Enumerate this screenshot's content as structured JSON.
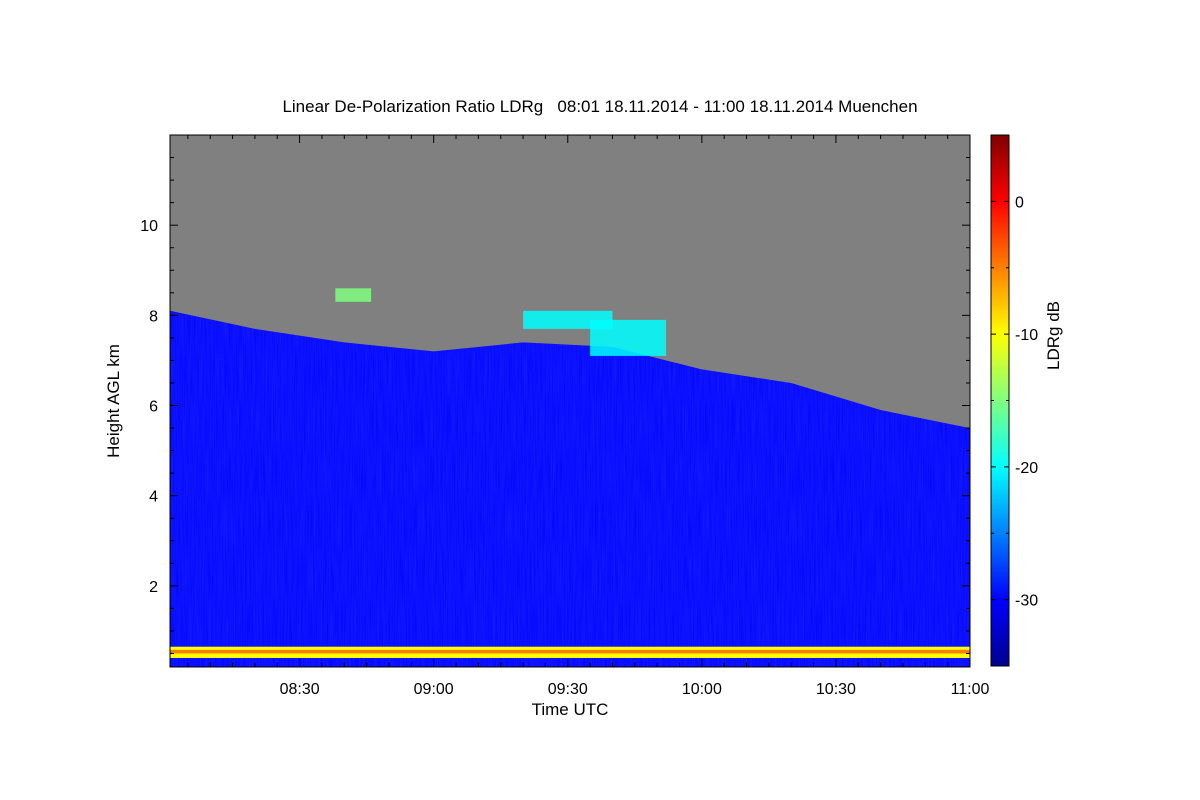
{
  "title": "Linear De-Polarization Ratio LDRg   08:01 18.11.2014 - 11:00 18.11.2014 Muenchen",
  "chart_data": {
    "type": "heatmap",
    "title": "Linear De-Polarization Ratio LDRg   08:01 18.11.2014 - 11:00 18.11.2014 Muenchen",
    "xlabel": "Time UTC",
    "ylabel": "Height AGL km",
    "colorbar_label": "LDRg dB",
    "xlim": [
      "08:01",
      "11:00"
    ],
    "ylim": [
      0.2,
      12.0
    ],
    "clim": [
      -35,
      5
    ],
    "x_ticks": [
      {
        "t": "08:30",
        "label": "08:30"
      },
      {
        "t": "09:00",
        "label": "09:00"
      },
      {
        "t": "09:30",
        "label": "09:30"
      },
      {
        "t": "10:00",
        "label": "10:00"
      },
      {
        "t": "10:30",
        "label": "10:30"
      },
      {
        "t": "11:00",
        "label": "11:00"
      }
    ],
    "y_ticks": [
      {
        "v": 2,
        "label": "2"
      },
      {
        "v": 4,
        "label": "4"
      },
      {
        "v": 6,
        "label": "6"
      },
      {
        "v": 8,
        "label": "8"
      },
      {
        "v": 10,
        "label": "10"
      }
    ],
    "colorbar_ticks": [
      {
        "v": 0,
        "label": "0"
      },
      {
        "v": -10,
        "label": "-10"
      },
      {
        "v": -20,
        "label": "-20"
      },
      {
        "v": -30,
        "label": "-30"
      }
    ],
    "no_data_color": "#808080",
    "colormap": [
      "#00008f",
      "#0000ff",
      "#0080ff",
      "#00ffff",
      "#80ff80",
      "#ffff00",
      "#ff8000",
      "#ff0000",
      "#800000"
    ],
    "signal_top_km": [
      {
        "t": "08:01",
        "h": 8.1
      },
      {
        "t": "08:20",
        "h": 7.7
      },
      {
        "t": "08:40",
        "h": 7.4
      },
      {
        "t": "09:00",
        "h": 7.2
      },
      {
        "t": "09:20",
        "h": 7.4
      },
      {
        "t": "09:40",
        "h": 7.3
      },
      {
        "t": "10:00",
        "h": 6.8
      },
      {
        "t": "10:20",
        "h": 6.5
      },
      {
        "t": "10:40",
        "h": 5.9
      },
      {
        "t": "11:00",
        "h": 5.5
      }
    ],
    "background_ldr_db": -28,
    "layers": [
      {
        "name": "",
        "t_start": "08:01",
        "t_end": "11:00",
        "h_bottom": 0.4,
        "h_top": 0.65,
        "ldr_db": -10
      },
      {
        "name": "",
        "t_start": "08:01",
        "t_end": "11:00",
        "h_bottom": 0.5,
        "h_top": 0.58,
        "ldr_db": -4
      },
      {
        "name": "",
        "t_start": "09:35",
        "t_end": "09:52",
        "h_bottom": 7.1,
        "h_top": 7.9,
        "ldr_db": -20
      },
      {
        "name": "",
        "t_start": "08:38",
        "t_end": "08:46",
        "h_bottom": 8.3,
        "h_top": 8.6,
        "ldr_db": -17
      },
      {
        "name": "",
        "t_start": "09:20",
        "t_end": "09:40",
        "h_bottom": 7.7,
        "h_top": 8.1,
        "ldr_db": -22
      }
    ]
  }
}
